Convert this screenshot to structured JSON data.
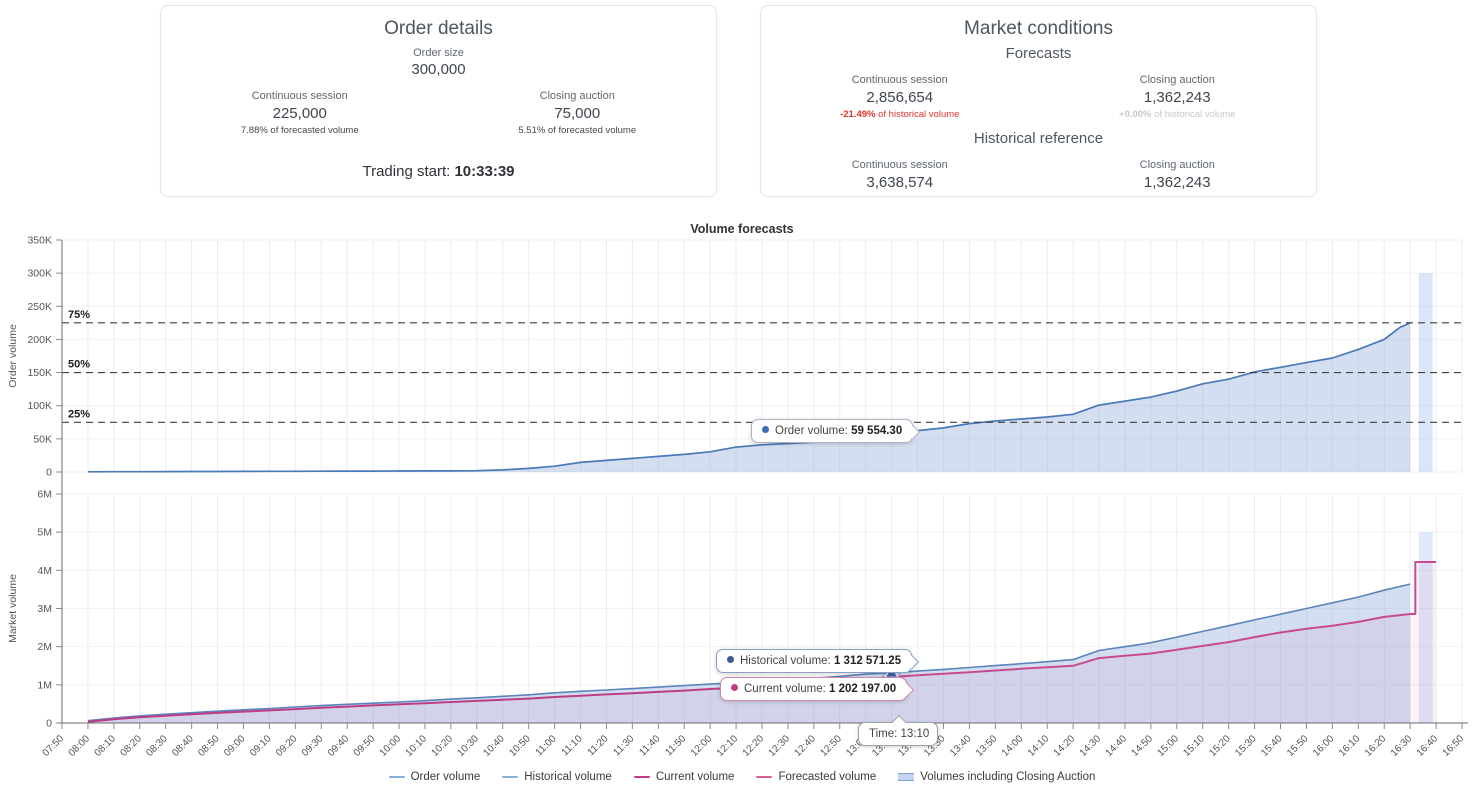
{
  "cards": {
    "order_details": {
      "title": "Order details",
      "order_size_label": "Order size",
      "order_size_value": "300,000",
      "continuous": {
        "label": "Continuous session",
        "value": "225,000",
        "note": "7.88% of forecasted volume"
      },
      "closing": {
        "label": "Closing auction",
        "value": "75,000",
        "note": "5.51% of forecasted volume"
      },
      "trading_start_label": "Trading start: ",
      "trading_start_value": "10:33:39"
    },
    "market_conditions": {
      "title": "Market conditions",
      "forecasts_title": "Forecasts",
      "forecast_continuous": {
        "label": "Continuous session",
        "value": "2,856,654",
        "note_strong": "-21.49%",
        "note_rest": " of historical volume",
        "note_color": "#e0342c"
      },
      "forecast_closing": {
        "label": "Closing auction",
        "value": "1,362,243",
        "note_strong": "+0.00%",
        "note_rest": " of historical volume",
        "note_color": "#c6c8cc"
      },
      "historical_title": "Historical reference",
      "hist_continuous": {
        "label": "Continuous session",
        "value": "3,638,574"
      },
      "hist_closing": {
        "label": "Closing auction",
        "value": "1,362,243"
      }
    },
    "tooltips_note": "tooltip text lives under top-level tooltips key"
  },
  "tooltips": {
    "order": {
      "label": "Order volume: ",
      "value": "59 554.30",
      "dot_color": "#3c6cb4"
    },
    "historical": {
      "label": "Historical volume: ",
      "value": "1 312 571.25",
      "dot_color": "#3c5a94"
    },
    "current": {
      "label": "Current volume: ",
      "value": "1 202 197.00",
      "dot_color": "#c33c7f"
    },
    "time": {
      "label": "Time: ",
      "value": "13:10"
    }
  },
  "legend": [
    {
      "label": "Order volume",
      "color": "#88aedd",
      "type": "line"
    },
    {
      "label": "Historical volume",
      "color": "#88aedd",
      "type": "line"
    },
    {
      "label": "Current volume",
      "color": "#bd3d85",
      "type": "line"
    },
    {
      "label": "Forecasted volume",
      "color": "#cf6298",
      "type": "line"
    },
    {
      "label": "Volumes including Closing Auction",
      "color": "#c3d5f0",
      "type": "box"
    }
  ],
  "chart_data": {
    "type": "line",
    "title": "Volume forecasts",
    "x_range": [
      "07:50",
      "16:50"
    ],
    "x_ticks": [
      "07:50",
      "08:00",
      "08:10",
      "08:20",
      "08:30",
      "08:40",
      "08:50",
      "09:00",
      "09:10",
      "09:20",
      "09:30",
      "09:40",
      "09:50",
      "10:00",
      "10:10",
      "10:20",
      "10:30",
      "10:40",
      "10:50",
      "11:00",
      "11:10",
      "11:20",
      "11:30",
      "11:40",
      "11:50",
      "12:00",
      "12:10",
      "12:20",
      "12:30",
      "12:40",
      "12:50",
      "13:00",
      "13:10",
      "13:20",
      "13:30",
      "13:40",
      "13:50",
      "14:00",
      "14:10",
      "14:20",
      "14:30",
      "14:40",
      "14:50",
      "15:00",
      "15:10",
      "15:20",
      "15:30",
      "15:40",
      "15:50",
      "16:00",
      "16:10",
      "16:20",
      "16:30",
      "16:40",
      "16:50"
    ],
    "grid": true,
    "legend_position": "bottom",
    "subplots": [
      {
        "ylabel": "Order volume",
        "ylim": [
          0,
          350000
        ],
        "px": [
          22,
          254
        ],
        "y_ticks": [
          {
            "label": "0",
            "value": 0
          },
          {
            "label": "50K",
            "value": 50000
          },
          {
            "label": "100K",
            "value": 100000
          },
          {
            "label": "150K",
            "value": 150000
          },
          {
            "label": "200K",
            "value": 200000
          },
          {
            "label": "250K",
            "value": 250000
          },
          {
            "label": "300K",
            "value": 300000
          },
          {
            "label": "350K",
            "value": 350000
          }
        ],
        "reference_lines": [
          {
            "label": "25%",
            "value": 75000
          },
          {
            "label": "50%",
            "value": 150000
          },
          {
            "label": "75%",
            "value": 225000
          }
        ],
        "bars": [
          {
            "name": "Volumes including Closing Auction",
            "time": "16:36",
            "value": 300000,
            "color": "rgba(158,188,234,0.38)"
          }
        ],
        "series": [
          {
            "name": "Order volume",
            "color": "#4a78b8",
            "width": 1.7,
            "fill": "rgba(120,158,214,0.33)",
            "points": [
              [
                "08:00",
                300
              ],
              [
                "08:10",
                400
              ],
              [
                "08:20",
                500
              ],
              [
                "08:30",
                600
              ],
              [
                "08:40",
                700
              ],
              [
                "08:50",
                800
              ],
              [
                "09:00",
                900
              ],
              [
                "09:10",
                1000
              ],
              [
                "09:20",
                1100
              ],
              [
                "09:30",
                1200
              ],
              [
                "09:40",
                1300
              ],
              [
                "09:50",
                1400
              ],
              [
                "10:00",
                1500
              ],
              [
                "10:10",
                1600
              ],
              [
                "10:20",
                1700
              ],
              [
                "10:30",
                1900
              ],
              [
                "10:40",
                3200
              ],
              [
                "10:50",
                5400
              ],
              [
                "11:00",
                8800
              ],
              [
                "11:10",
                14500
              ],
              [
                "11:20",
                17500
              ],
              [
                "11:30",
                20500
              ],
              [
                "11:40",
                23500
              ],
              [
                "11:50",
                26500
              ],
              [
                "12:00",
                30500
              ],
              [
                "12:10",
                37500
              ],
              [
                "12:20",
                41000
              ],
              [
                "12:30",
                43000
              ],
              [
                "12:40",
                45000
              ],
              [
                "12:50",
                47500
              ],
              [
                "13:00",
                54000
              ],
              [
                "13:10",
                59554.3
              ],
              [
                "13:20",
                62500
              ],
              [
                "13:30",
                66500
              ],
              [
                "13:40",
                73000
              ],
              [
                "13:50",
                77000
              ],
              [
                "14:00",
                80000
              ],
              [
                "14:10",
                83000
              ],
              [
                "14:20",
                87000
              ],
              [
                "14:30",
                101000
              ],
              [
                "14:40",
                107000
              ],
              [
                "14:50",
                113000
              ],
              [
                "15:00",
                122000
              ],
              [
                "15:10",
                133000
              ],
              [
                "15:20",
                140000
              ],
              [
                "15:30",
                151000
              ],
              [
                "15:40",
                158000
              ],
              [
                "15:50",
                165000
              ],
              [
                "16:00",
                172000
              ],
              [
                "16:10",
                185000
              ],
              [
                "16:20",
                200000
              ],
              [
                "16:26",
                218000
              ],
              [
                "16:30",
                225000
              ]
            ]
          }
        ]
      },
      {
        "ylabel": "Market volume",
        "ylim": [
          0,
          6000000
        ],
        "px": [
          276,
          505
        ],
        "y_ticks": [
          {
            "label": "0",
            "value": 0
          },
          {
            "label": "1M",
            "value": 1000000
          },
          {
            "label": "2M",
            "value": 2000000
          },
          {
            "label": "3M",
            "value": 3000000
          },
          {
            "label": "4M",
            "value": 4000000
          },
          {
            "label": "5M",
            "value": 5000000
          },
          {
            "label": "6M",
            "value": 6000000
          }
        ],
        "reference_lines": [],
        "bars": [
          {
            "name": "Volumes including Closing Auction",
            "time": "16:36",
            "value": 5000817,
            "color": "rgba(158,188,234,0.32)"
          }
        ],
        "series": [
          {
            "name": "Historical volume",
            "color": "#5b83bd",
            "width": 1.6,
            "fill": "rgba(120,158,214,0.33)",
            "points": [
              [
                "08:00",
                60000
              ],
              [
                "08:10",
                130000
              ],
              [
                "08:20",
                185000
              ],
              [
                "08:30",
                230000
              ],
              [
                "08:40",
                270000
              ],
              [
                "08:50",
                310000
              ],
              [
                "09:00",
                345000
              ],
              [
                "09:10",
                380000
              ],
              [
                "09:20",
                420000
              ],
              [
                "09:30",
                455000
              ],
              [
                "09:40",
                490000
              ],
              [
                "09:50",
                520000
              ],
              [
                "10:00",
                550000
              ],
              [
                "10:10",
                585000
              ],
              [
                "10:20",
                625000
              ],
              [
                "10:30",
                660000
              ],
              [
                "10:40",
                700000
              ],
              [
                "10:50",
                740000
              ],
              [
                "11:00",
                790000
              ],
              [
                "11:10",
                830000
              ],
              [
                "11:20",
                865000
              ],
              [
                "11:30",
                900000
              ],
              [
                "11:40",
                940000
              ],
              [
                "11:50",
                980000
              ],
              [
                "12:00",
                1020000
              ],
              [
                "12:10",
                1060000
              ],
              [
                "12:20",
                1095000
              ],
              [
                "12:30",
                1130000
              ],
              [
                "12:40",
                1170000
              ],
              [
                "12:50",
                1220000
              ],
              [
                "13:00",
                1280000
              ],
              [
                "13:10",
                1312571.25
              ],
              [
                "13:20",
                1360000
              ],
              [
                "13:30",
                1405000
              ],
              [
                "13:40",
                1455000
              ],
              [
                "13:50",
                1505000
              ],
              [
                "14:00",
                1555000
              ],
              [
                "14:10",
                1605000
              ],
              [
                "14:20",
                1660000
              ],
              [
                "14:30",
                1900000
              ],
              [
                "14:40",
                2000000
              ],
              [
                "14:50",
                2105000
              ],
              [
                "15:00",
                2250000
              ],
              [
                "15:10",
                2400000
              ],
              [
                "15:20",
                2550000
              ],
              [
                "15:30",
                2700000
              ],
              [
                "15:40",
                2850000
              ],
              [
                "15:50",
                3000000
              ],
              [
                "16:00",
                3150000
              ],
              [
                "16:10",
                3300000
              ],
              [
                "16:20",
                3480000
              ],
              [
                "16:30",
                3638574
              ]
            ]
          },
          {
            "name": "Current volume",
            "color": "#bd3d85",
            "width": 2,
            "fill": "rgba(200,80,150,0.08)",
            "points": [
              [
                "08:00",
                30000
              ],
              [
                "08:10",
                100000
              ],
              [
                "08:20",
                150000
              ],
              [
                "08:30",
                190000
              ],
              [
                "08:40",
                230000
              ],
              [
                "08:50",
                265000
              ],
              [
                "09:00",
                300000
              ],
              [
                "09:10",
                330000
              ],
              [
                "09:20",
                365000
              ],
              [
                "09:30",
                400000
              ],
              [
                "09:40",
                430000
              ],
              [
                "09:50",
                460000
              ],
              [
                "10:00",
                490000
              ],
              [
                "10:10",
                520000
              ],
              [
                "10:20",
                550000
              ],
              [
                "10:30",
                580000
              ],
              [
                "10:40",
                610000
              ],
              [
                "10:50",
                640000
              ],
              [
                "11:00",
                680000
              ],
              [
                "11:10",
                715000
              ],
              [
                "11:20",
                750000
              ],
              [
                "11:30",
                780000
              ],
              [
                "11:40",
                815000
              ],
              [
                "11:50",
                850000
              ],
              [
                "12:00",
                890000
              ],
              [
                "12:10",
                925000
              ],
              [
                "12:20",
                960000
              ],
              [
                "12:30",
                990000
              ],
              [
                "12:40",
                1030000
              ],
              [
                "12:50",
                1080000
              ],
              [
                "13:00",
                1150000
              ],
              [
                "13:10",
                1202197
              ]
            ]
          },
          {
            "name": "Forecasted volume",
            "color": "#c84b8e",
            "width": 2,
            "fill": "rgba(200,80,150,0.08)",
            "points": [
              [
                "13:10",
                1202197
              ],
              [
                "13:20",
                1250000
              ],
              [
                "13:30",
                1290000
              ],
              [
                "13:40",
                1330000
              ],
              [
                "13:50",
                1375000
              ],
              [
                "14:00",
                1420000
              ],
              [
                "14:10",
                1460000
              ],
              [
                "14:20",
                1500000
              ],
              [
                "14:30",
                1700000
              ],
              [
                "14:40",
                1760000
              ],
              [
                "14:50",
                1820000
              ],
              [
                "15:00",
                1920000
              ],
              [
                "15:10",
                2020000
              ],
              [
                "15:20",
                2120000
              ],
              [
                "15:30",
                2250000
              ],
              [
                "15:40",
                2370000
              ],
              [
                "15:50",
                2470000
              ],
              [
                "16:00",
                2550000
              ],
              [
                "16:10",
                2650000
              ],
              [
                "16:20",
                2780000
              ],
              [
                "16:30",
                2856654
              ],
              [
                "16:32",
                2856654
              ],
              [
                "16:32",
                4218897
              ],
              [
                "16:40",
                4218897
              ]
            ]
          }
        ]
      }
    ],
    "markers": [
      {
        "subplot": 0,
        "time": "13:10",
        "value": 59554.3,
        "shape": "circle",
        "color": "#3c6cb4"
      },
      {
        "subplot": 1,
        "time": "13:10",
        "value": 1312571.25,
        "shape": "triangle",
        "color": "#4262ad",
        "halo": "rgba(145,120,200,0.25)"
      }
    ]
  }
}
